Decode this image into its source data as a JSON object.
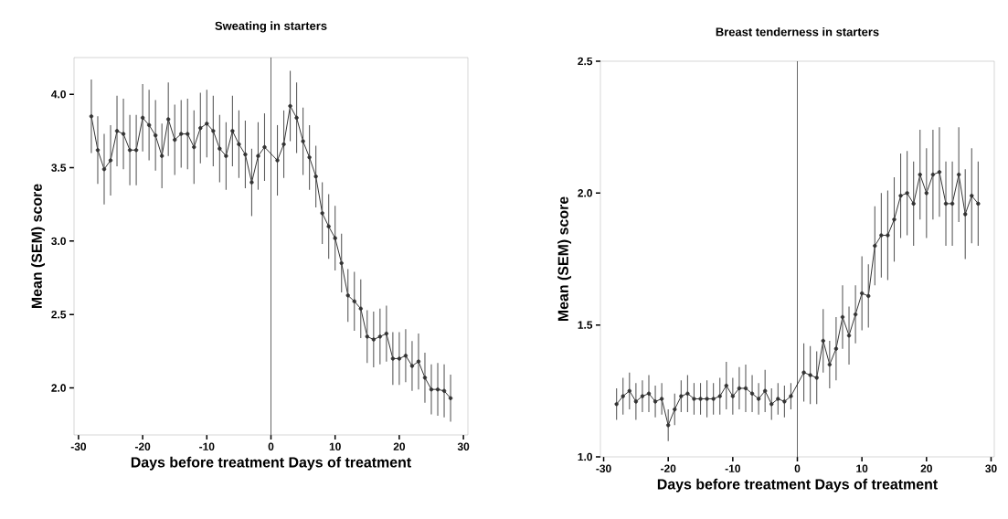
{
  "chart_data": [
    {
      "type": "line",
      "title": "Sweating in starters",
      "xlabel": "Days before treatment   Days of treatment",
      "ylabel": "Mean (SEM) score",
      "x": [
        -28,
        -27,
        -26,
        -25,
        -24,
        -23,
        -22,
        -21,
        -20,
        -19,
        -18,
        -17,
        -16,
        -15,
        -14,
        -13,
        -12,
        -11,
        -10,
        -9,
        -8,
        -7,
        -6,
        -5,
        -4,
        -3,
        -2,
        -1,
        1,
        2,
        3,
        4,
        5,
        6,
        7,
        8,
        9,
        10,
        11,
        12,
        13,
        14,
        15,
        16,
        17,
        18,
        19,
        20,
        21,
        22,
        23,
        24,
        25,
        26,
        27,
        28
      ],
      "values": [
        3.85,
        3.62,
        3.49,
        3.55,
        3.75,
        3.73,
        3.62,
        3.62,
        3.84,
        3.79,
        3.72,
        3.58,
        3.83,
        3.69,
        3.73,
        3.73,
        3.64,
        3.77,
        3.8,
        3.75,
        3.63,
        3.58,
        3.75,
        3.66,
        3.59,
        3.4,
        3.58,
        3.64,
        3.55,
        3.66,
        3.92,
        3.84,
        3.68,
        3.57,
        3.44,
        3.19,
        3.1,
        3.02,
        2.85,
        2.63,
        2.59,
        2.54,
        2.35,
        2.33,
        2.35,
        2.37,
        2.2,
        2.2,
        2.22,
        2.15,
        2.18,
        2.07,
        1.99,
        1.99,
        1.98,
        1.93
      ],
      "errors": [
        0.25,
        0.23,
        0.24,
        0.24,
        0.24,
        0.24,
        0.24,
        0.24,
        0.23,
        0.24,
        0.24,
        0.22,
        0.25,
        0.24,
        0.23,
        0.24,
        0.25,
        0.24,
        0.23,
        0.24,
        0.23,
        0.23,
        0.24,
        0.23,
        0.23,
        0.23,
        0.23,
        0.23,
        0.24,
        0.23,
        0.24,
        0.24,
        0.23,
        0.22,
        0.21,
        0.21,
        0.22,
        0.22,
        0.2,
        0.18,
        0.2,
        0.2,
        0.18,
        0.19,
        0.19,
        0.19,
        0.18,
        0.18,
        0.18,
        0.17,
        0.19,
        0.17,
        0.17,
        0.18,
        0.18,
        0.16
      ],
      "color": "#333333",
      "marker": "circle",
      "line_style": "solid",
      "xlim": [
        -30.7,
        30.7
      ],
      "ylim": [
        1.68,
        4.25
      ],
      "xticks": [
        -30,
        -20,
        -10,
        0,
        10,
        20,
        30
      ],
      "yticks": [
        {
          "value": 2.0,
          "label": "2.0"
        },
        {
          "value": 2.5,
          "label": "2.5"
        },
        {
          "value": 3.0,
          "label": "3.0"
        },
        {
          "value": 3.5,
          "label": "3.5"
        },
        {
          "value": 4.0,
          "label": "4.0"
        }
      ],
      "ref_lines": [
        {
          "axis": "x",
          "value": 0,
          "color": "#000000"
        }
      ]
    },
    {
      "type": "line",
      "title": "Breast tenderness in starters",
      "xlabel": "Days before treatment   Days of treatment",
      "ylabel": "Mean (SEM) score",
      "x": [
        -28,
        -27,
        -26,
        -25,
        -24,
        -23,
        -22,
        -21,
        -20,
        -19,
        -18,
        -17,
        -16,
        -15,
        -14,
        -13,
        -12,
        -11,
        -10,
        -9,
        -8,
        -7,
        -6,
        -5,
        -4,
        -3,
        -2,
        -1,
        1,
        2,
        3,
        4,
        5,
        6,
        7,
        8,
        9,
        10,
        11,
        12,
        13,
        14,
        15,
        16,
        17,
        18,
        19,
        20,
        21,
        22,
        23,
        24,
        25,
        26,
        27,
        28
      ],
      "values": [
        1.2,
        1.23,
        1.25,
        1.21,
        1.23,
        1.24,
        1.21,
        1.22,
        1.12,
        1.18,
        1.23,
        1.24,
        1.22,
        1.22,
        1.22,
        1.22,
        1.23,
        1.27,
        1.23,
        1.26,
        1.26,
        1.24,
        1.22,
        1.25,
        1.2,
        1.22,
        1.21,
        1.23,
        1.32,
        1.31,
        1.3,
        1.44,
        1.35,
        1.41,
        1.53,
        1.46,
        1.54,
        1.62,
        1.61,
        1.8,
        1.84,
        1.84,
        1.9,
        1.99,
        2.0,
        1.96,
        2.07,
        2.0,
        2.07,
        2.08,
        1.96,
        1.96,
        2.07,
        1.92,
        1.99,
        1.96
      ],
      "errors": [
        0.06,
        0.07,
        0.07,
        0.07,
        0.06,
        0.07,
        0.06,
        0.06,
        0.06,
        0.06,
        0.06,
        0.07,
        0.06,
        0.06,
        0.07,
        0.06,
        0.07,
        0.09,
        0.07,
        0.08,
        0.09,
        0.07,
        0.06,
        0.08,
        0.06,
        0.06,
        0.06,
        0.05,
        0.11,
        0.11,
        0.1,
        0.12,
        0.09,
        0.12,
        0.12,
        0.11,
        0.11,
        0.14,
        0.12,
        0.15,
        0.16,
        0.17,
        0.16,
        0.16,
        0.16,
        0.16,
        0.17,
        0.17,
        0.17,
        0.17,
        0.16,
        0.16,
        0.18,
        0.17,
        0.18,
        0.16
      ],
      "color": "#333333",
      "marker": "circle",
      "line_style": "solid",
      "xlim": [
        -30.5,
        30.5
      ],
      "ylim": [
        1.0,
        2.5
      ],
      "xticks": [
        -30,
        -20,
        -10,
        0,
        10,
        20,
        30
      ],
      "yticks": [
        {
          "value": 1.0,
          "label": "1.0"
        },
        {
          "value": 1.5,
          "label": "1.5"
        },
        {
          "value": 2.0,
          "label": "2.0"
        },
        {
          "value": 2.5,
          "label": "2.5"
        }
      ],
      "ref_lines": [
        {
          "axis": "x",
          "value": 0,
          "color": "#000000"
        }
      ]
    }
  ]
}
